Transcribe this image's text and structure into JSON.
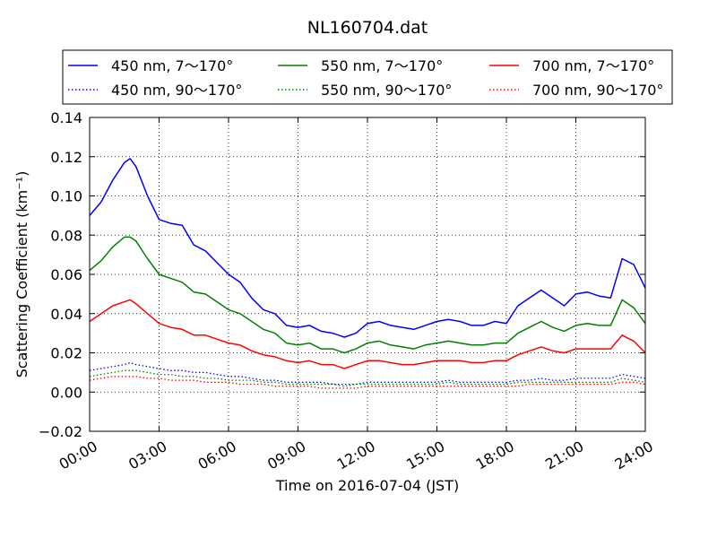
{
  "chart_data": {
    "type": "line",
    "title": "NL160704.dat",
    "xlabel": "Time on 2016-07-04 (JST)",
    "ylabel": "Scattering Coefficient (km⁻¹)",
    "xlim": [
      "00:00",
      "24:00"
    ],
    "ylim": [
      -0.02,
      0.14
    ],
    "x_ticks": [
      "00:00",
      "03:00",
      "06:00",
      "09:00",
      "12:00",
      "15:00",
      "18:00",
      "21:00",
      "24:00"
    ],
    "y_ticks": [
      "−0.02",
      "0.00",
      "0.02",
      "0.04",
      "0.06",
      "0.08",
      "0.10",
      "0.12",
      "0.14"
    ],
    "grid": true,
    "legend_position": "top",
    "x": [
      "00:00",
      "00:30",
      "01:00",
      "01:30",
      "01:45",
      "02:00",
      "02:30",
      "03:00",
      "03:30",
      "04:00",
      "04:30",
      "05:00",
      "05:30",
      "06:00",
      "06:30",
      "07:00",
      "07:30",
      "08:00",
      "08:30",
      "09:00",
      "09:30",
      "10:00",
      "10:30",
      "11:00",
      "11:30",
      "12:00",
      "12:30",
      "13:00",
      "13:30",
      "14:00",
      "14:30",
      "15:00",
      "15:30",
      "16:00",
      "16:30",
      "17:00",
      "17:30",
      "18:00",
      "18:30",
      "19:00",
      "19:30",
      "20:00",
      "20:30",
      "21:00",
      "21:30",
      "22:00",
      "22:30",
      "23:00",
      "23:30",
      "24:00"
    ],
    "series": [
      {
        "name": "450 nm, 7～170°",
        "color": "#0000ff",
        "style": "solid",
        "values": [
          0.09,
          0.097,
          0.108,
          0.117,
          0.119,
          0.115,
          0.1,
          0.088,
          0.086,
          0.085,
          0.075,
          0.072,
          0.066,
          0.06,
          0.056,
          0.048,
          0.042,
          0.04,
          0.034,
          0.033,
          0.034,
          0.031,
          0.03,
          0.028,
          0.03,
          0.035,
          0.036,
          0.034,
          0.033,
          0.032,
          0.034,
          0.036,
          0.037,
          0.036,
          0.034,
          0.034,
          0.036,
          0.035,
          0.044,
          0.048,
          0.052,
          0.048,
          0.044,
          0.05,
          0.051,
          0.049,
          0.048,
          0.068,
          0.065,
          0.053
        ]
      },
      {
        "name": "550 nm, 7～170°",
        "color": "#008000",
        "style": "solid",
        "values": [
          0.062,
          0.067,
          0.074,
          0.079,
          0.079,
          0.077,
          0.068,
          0.06,
          0.058,
          0.056,
          0.051,
          0.05,
          0.046,
          0.042,
          0.04,
          0.036,
          0.032,
          0.03,
          0.025,
          0.024,
          0.025,
          0.022,
          0.022,
          0.02,
          0.022,
          0.025,
          0.026,
          0.024,
          0.023,
          0.022,
          0.024,
          0.025,
          0.026,
          0.025,
          0.024,
          0.024,
          0.025,
          0.025,
          0.03,
          0.033,
          0.036,
          0.033,
          0.031,
          0.034,
          0.035,
          0.034,
          0.034,
          0.047,
          0.043,
          0.035
        ]
      },
      {
        "name": "700 nm, 7～170°",
        "color": "#ff0000",
        "style": "solid",
        "values": [
          0.036,
          0.04,
          0.044,
          0.046,
          0.047,
          0.045,
          0.04,
          0.035,
          0.033,
          0.032,
          0.029,
          0.029,
          0.027,
          0.025,
          0.024,
          0.021,
          0.019,
          0.018,
          0.016,
          0.015,
          0.016,
          0.014,
          0.014,
          0.012,
          0.014,
          0.016,
          0.016,
          0.015,
          0.014,
          0.014,
          0.015,
          0.016,
          0.016,
          0.016,
          0.015,
          0.015,
          0.016,
          0.016,
          0.019,
          0.021,
          0.023,
          0.021,
          0.02,
          0.022,
          0.022,
          0.022,
          0.022,
          0.029,
          0.026,
          0.02
        ]
      },
      {
        "name": "450 nm, 90～170°",
        "color": "#0000ff",
        "style": "dotted",
        "values": [
          0.011,
          0.012,
          0.013,
          0.014,
          0.015,
          0.014,
          0.013,
          0.012,
          0.011,
          0.011,
          0.01,
          0.01,
          0.009,
          0.008,
          0.008,
          0.007,
          0.006,
          0.006,
          0.005,
          0.005,
          0.005,
          0.005,
          0.004,
          0.004,
          0.004,
          0.005,
          0.005,
          0.005,
          0.005,
          0.005,
          0.005,
          0.005,
          0.006,
          0.005,
          0.005,
          0.005,
          0.005,
          0.005,
          0.006,
          0.006,
          0.007,
          0.006,
          0.006,
          0.007,
          0.007,
          0.007,
          0.007,
          0.009,
          0.008,
          0.007
        ]
      },
      {
        "name": "550 nm, 90～170°",
        "color": "#008000",
        "style": "dotted",
        "values": [
          0.008,
          0.009,
          0.01,
          0.011,
          0.011,
          0.011,
          0.01,
          0.009,
          0.009,
          0.008,
          0.008,
          0.007,
          0.007,
          0.006,
          0.006,
          0.006,
          0.005,
          0.005,
          0.004,
          0.004,
          0.004,
          0.004,
          0.004,
          0.003,
          0.004,
          0.004,
          0.004,
          0.004,
          0.004,
          0.004,
          0.004,
          0.004,
          0.005,
          0.004,
          0.004,
          0.004,
          0.004,
          0.004,
          0.005,
          0.005,
          0.005,
          0.005,
          0.005,
          0.005,
          0.005,
          0.005,
          0.005,
          0.007,
          0.006,
          0.005
        ]
      },
      {
        "name": "700 nm, 90～170°",
        "color": "#ff0000",
        "style": "dotted",
        "values": [
          0.006,
          0.007,
          0.008,
          0.008,
          0.008,
          0.008,
          0.007,
          0.007,
          0.006,
          0.006,
          0.006,
          0.005,
          0.005,
          0.005,
          0.004,
          0.004,
          0.004,
          0.003,
          0.003,
          0.003,
          0.003,
          0.002,
          0.002,
          0.002,
          0.002,
          0.003,
          0.003,
          0.003,
          0.003,
          0.003,
          0.003,
          0.003,
          0.003,
          0.003,
          0.003,
          0.003,
          0.003,
          0.003,
          0.003,
          0.004,
          0.004,
          0.004,
          0.004,
          0.004,
          0.004,
          0.004,
          0.004,
          0.005,
          0.005,
          0.004
        ]
      }
    ]
  }
}
